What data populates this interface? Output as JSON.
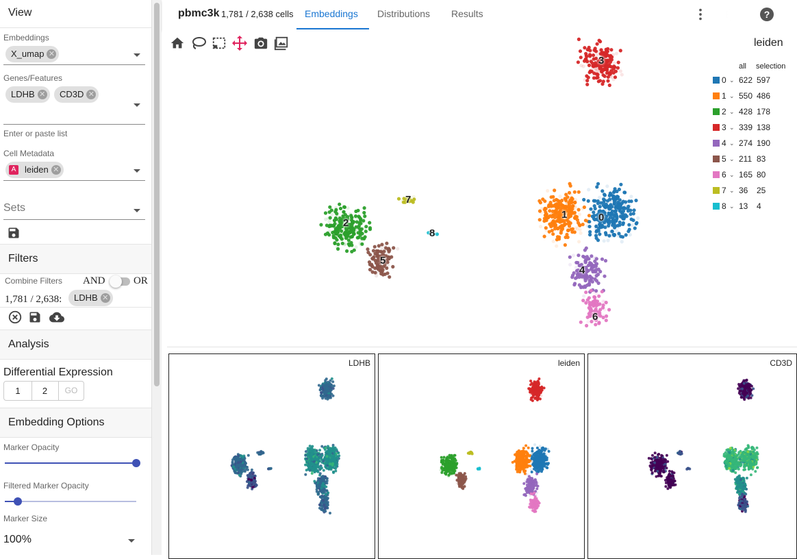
{
  "sidebar": {
    "view_title": "View",
    "embeddings_label": "Embeddings",
    "embedding_chip": "X_umap",
    "genes_label": "Genes/Features",
    "gene_chips": [
      "LDHB",
      "CD3D"
    ],
    "genes_hint": "Enter or paste list",
    "metadata_label": "Cell Metadata",
    "metadata_chip_badge": "A",
    "metadata_chip": "leiden",
    "sets_label": "Sets",
    "filters_title": "Filters",
    "combine_label": "Combine Filters",
    "and_label": "AND",
    "or_label": "OR",
    "filter_count": "1,781 / 2,638:",
    "filter_chip": "LDHB",
    "analysis_title": "Analysis",
    "de_label": "Differential Expression",
    "de_buttons": [
      "1",
      "2",
      "GO"
    ],
    "embedding_options_title": "Embedding Options",
    "marker_opacity_label": "Marker Opacity",
    "marker_opacity_value": 1.0,
    "filtered_opacity_label": "Filtered Marker Opacity",
    "filtered_opacity_value": 0.1,
    "marker_size_label": "Marker Size",
    "marker_size_value": "100%"
  },
  "topbar": {
    "dataset": "pbmc3k",
    "cells": "1,781 / 2,638 cells",
    "tabs": [
      "Embeddings",
      "Distributions",
      "Results"
    ],
    "active_tab": "Embeddings"
  },
  "toolbar_icons": [
    "home-icon",
    "lasso-icon",
    "select-box-icon",
    "pan-icon",
    "camera-icon",
    "image-icon"
  ],
  "legend": {
    "title": "leiden",
    "col_all": "all",
    "col_selection": "selection",
    "rows": [
      {
        "id": "0",
        "all": "622",
        "sel": "597",
        "color": "#1f77b4"
      },
      {
        "id": "1",
        "all": "550",
        "sel": "486",
        "color": "#ff7f0e"
      },
      {
        "id": "2",
        "all": "428",
        "sel": "178",
        "color": "#2ca02c"
      },
      {
        "id": "3",
        "all": "339",
        "sel": "138",
        "color": "#d62728"
      },
      {
        "id": "4",
        "all": "274",
        "sel": "190",
        "color": "#9467bd"
      },
      {
        "id": "5",
        "all": "211",
        "sel": "83",
        "color": "#8c564b"
      },
      {
        "id": "6",
        "all": "165",
        "sel": "80",
        "color": "#e377c2"
      },
      {
        "id": "7",
        "all": "36",
        "sel": "25",
        "color": "#bcbd22"
      },
      {
        "id": "8",
        "all": "13",
        "sel": "4",
        "color": "#17becf"
      }
    ]
  },
  "panels": [
    "LDHB",
    "leiden",
    "CD3D"
  ]
}
